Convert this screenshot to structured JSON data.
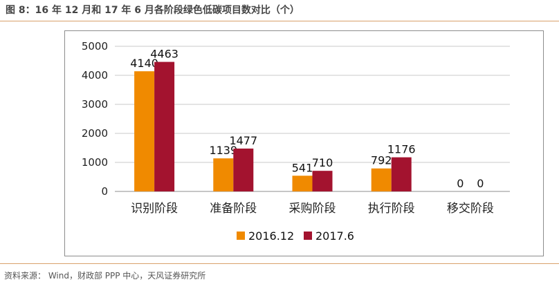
{
  "figure": {
    "title": "图 8：16 年 12 月和 17 年 6 月各阶段绿色低碳项目数对比（个）",
    "source": "资料来源： Wind，财政部 PPP 中心，天风证券研究所"
  },
  "colors": {
    "series_2016": "#f08a00",
    "series_2017": "#a3132f",
    "rule": "#d9a06a",
    "grid": "#c8c8c8"
  },
  "chart_data": {
    "type": "bar",
    "categories": [
      "识别阶段",
      "准备阶段",
      "采购阶段",
      "执行阶段",
      "移交阶段"
    ],
    "series": [
      {
        "name": "2016.12",
        "values": [
          4140,
          1139,
          541,
          792,
          0
        ]
      },
      {
        "name": "2017.6",
        "values": [
          4463,
          1477,
          710,
          1176,
          0
        ]
      }
    ],
    "yticks": [
      "0",
      "1000",
      "2000",
      "3000",
      "4000",
      "5000"
    ],
    "ylim": [
      0,
      5000
    ],
    "grid": true,
    "legend": "bottom"
  }
}
